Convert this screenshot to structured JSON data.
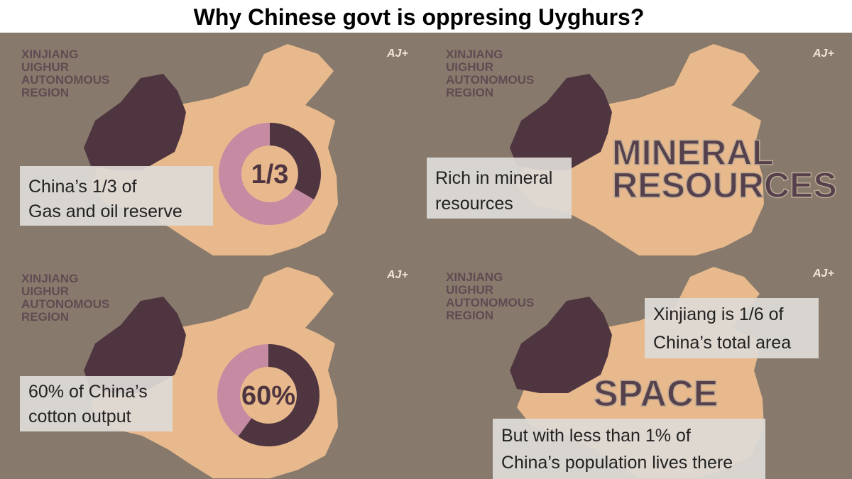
{
  "title": "Why Chinese govt is oppresing Uyghurs?",
  "panels": [
    {
      "region_label": [
        "XINJIANG",
        "UIGHUR",
        "AUTONOMOUS",
        "REGION"
      ],
      "logo": "AJ+",
      "graphic_text": [
        "1/3"
      ],
      "captions": [
        [
          "China’s 1/3 of",
          "Gas and oil reserve"
        ]
      ]
    },
    {
      "region_label": [
        "XINJIANG",
        "UIGHUR",
        "AUTONOMOUS",
        "REGION"
      ],
      "logo": "AJ+",
      "graphic_text": [
        "MINERAL",
        "RESOURCES"
      ],
      "captions": [
        [
          "Rich in mineral",
          "resources"
        ]
      ]
    },
    {
      "region_label": [
        "XINJIANG",
        "UIGHUR",
        "AUTONOMOUS",
        "REGION"
      ],
      "logo": "AJ+",
      "graphic_text": [
        "60%"
      ],
      "captions": [
        [
          "60% of China’s",
          "cotton output"
        ]
      ]
    },
    {
      "region_label": [
        "XINJIANG",
        "UIGHUR",
        "AUTONOMOUS",
        "REGION"
      ],
      "logo": "AJ+",
      "graphic_text": [
        "SPACE"
      ],
      "captions": [
        [
          "Xinjiang is 1/6 of",
          "China’s total area"
        ],
        [
          "But with less than 1% of",
          "China’s population lives there"
        ]
      ]
    }
  ]
}
